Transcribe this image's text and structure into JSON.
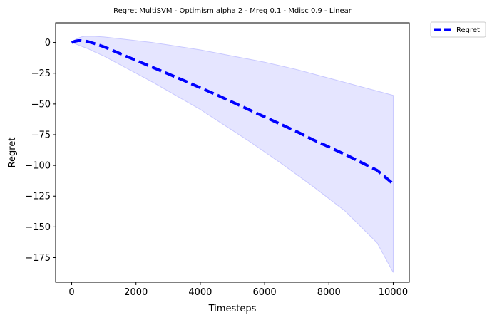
{
  "chart_data": {
    "type": "line",
    "title": "Regret MultiSVM - Optimism alpha 2 - Mreg 0.1 - Mdisc 0.9 - Linear",
    "xlabel": "Timesteps",
    "ylabel": "Regret",
    "xlim": [
      -500,
      10500
    ],
    "ylim": [
      -195,
      16
    ],
    "xticks": [
      0,
      2000,
      4000,
      6000,
      8000,
      10000
    ],
    "xtick_labels": [
      "0",
      "2000",
      "4000",
      "6000",
      "8000",
      "10000"
    ],
    "yticks": [
      0,
      -25,
      -50,
      -75,
      -100,
      -125,
      -150,
      -175
    ],
    "ytick_labels": [
      "0",
      "−25",
      "−50",
      "−75",
      "−100",
      "−125",
      "−150",
      "−175"
    ],
    "grid": false,
    "legend_position": "outside-top-right",
    "colors": {
      "line": "#0000ff",
      "band": "#e5e5ff",
      "band_edge": "#c8c8ff"
    },
    "series": [
      {
        "name": "Regret",
        "style": "dashed",
        "x": [
          0,
          100,
          200,
          300,
          400,
          500,
          700,
          1000,
          1500,
          2000,
          2500,
          3000,
          3500,
          4000,
          4500,
          5000,
          5500,
          6000,
          6500,
          7000,
          7500,
          8000,
          8500,
          9000,
          9500,
          10000
        ],
        "y": [
          0,
          1,
          1.5,
          1.5,
          1.2,
          0.8,
          -0.8,
          -3.5,
          -9,
          -14.5,
          -20,
          -25.5,
          -31,
          -36.8,
          -42.5,
          -48.5,
          -54.5,
          -60.5,
          -66.5,
          -72.5,
          -79,
          -85,
          -91,
          -97.5,
          -104,
          -115
        ],
        "band_upper": [
          0,
          2,
          3.5,
          4.5,
          5,
          5,
          5,
          4.5,
          3,
          1.5,
          0,
          -2,
          -4,
          -6,
          -8.5,
          -11,
          -13.5,
          -16,
          -19,
          -22,
          -25.5,
          -29,
          -32.5,
          -36,
          -39.5,
          -43
        ],
        "band_lower": [
          0,
          -1,
          -2,
          -3,
          -4,
          -5,
          -7.5,
          -11,
          -18,
          -25,
          -32,
          -39.5,
          -47,
          -54.5,
          -63,
          -71.5,
          -80,
          -89,
          -98,
          -107.5,
          -117,
          -127,
          -137,
          -150,
          -163,
          -187
        ]
      }
    ]
  }
}
